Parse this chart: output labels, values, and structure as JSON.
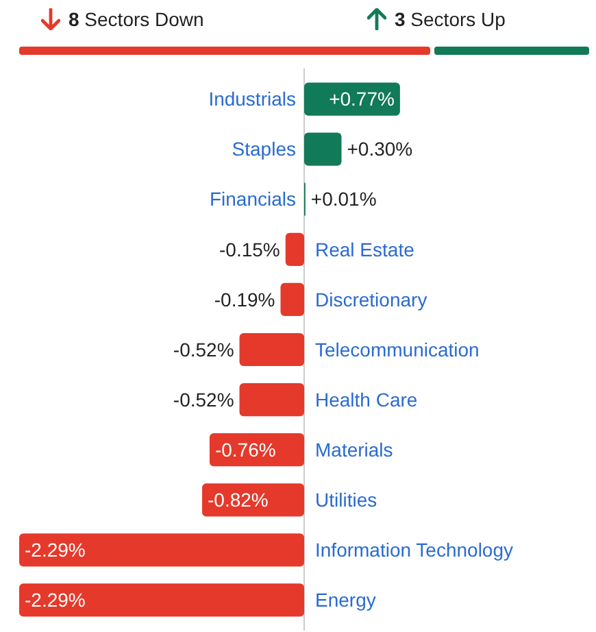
{
  "chart_data": {
    "type": "bar",
    "orientation": "horizontal",
    "annotations": [
      "8 Sectors Down",
      "3 Sectors Up"
    ],
    "categories": [
      "Industrials",
      "Staples",
      "Financials",
      "Real Estate",
      "Discretionary",
      "Telecommunication",
      "Health Care",
      "Materials",
      "Utilities",
      "Information Technology",
      "Energy"
    ],
    "values": [
      0.77,
      0.3,
      0.01,
      -0.15,
      -0.19,
      -0.52,
      -0.52,
      -0.76,
      -0.82,
      -2.29,
      -2.29
    ],
    "value_labels": [
      "+0.77%",
      "+0.30%",
      "+0.01%",
      "-0.15%",
      "-0.19%",
      "-0.52%",
      "-0.52%",
      "-0.76%",
      "-0.82%",
      "-2.29%",
      "-2.29%"
    ],
    "colors": [
      "#117a58",
      "#117a58",
      "#117a58",
      "#e5392b",
      "#e5392b",
      "#e5392b",
      "#e5392b",
      "#e5392b",
      "#e5392b",
      "#e5392b",
      "#e5392b"
    ],
    "tick_labels": false,
    "legend": false
  }
}
